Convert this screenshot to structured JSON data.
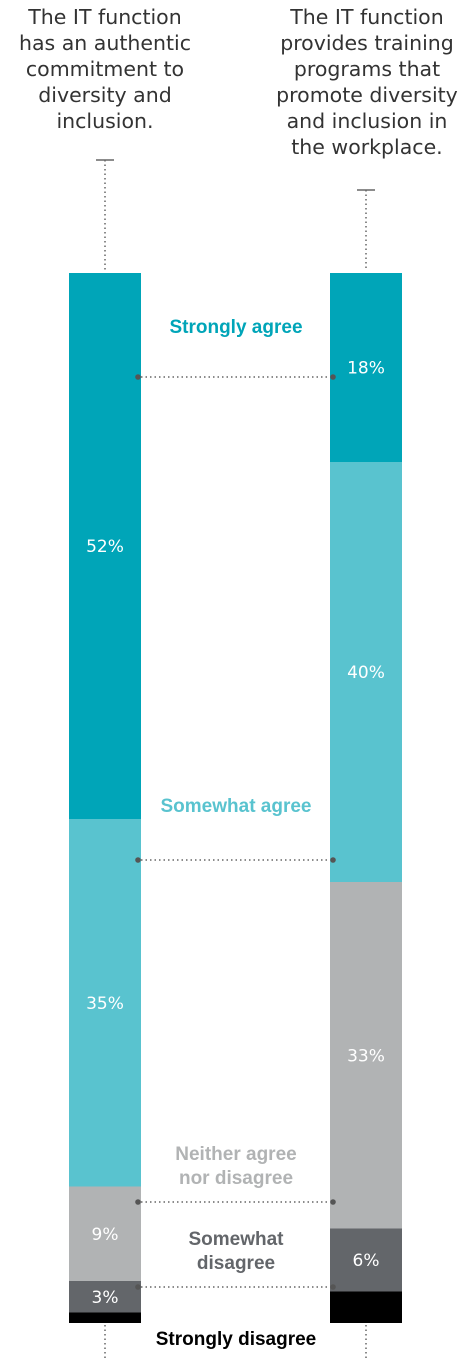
{
  "chart_data": {
    "type": "bar",
    "stacked": true,
    "orientation": "vertical",
    "categories": [
      "The IT function\nhas an authentic\ncommitment to\ndiversity and\ninclusion.",
      "The IT function\nprovides training\nprograms that\npromote diversity\nand inclusion in\nthe workplace."
    ],
    "series": [
      {
        "name": "Strongly agree",
        "values": [
          52,
          18
        ],
        "labels": [
          "52%",
          "18%"
        ],
        "color": "#00a5b8",
        "label_color": "#00a5b8"
      },
      {
        "name": "Somewhat agree",
        "values": [
          35,
          40
        ],
        "labels": [
          "35%",
          "40%"
        ],
        "color": "#59c3cf",
        "label_color": "#59c3cf"
      },
      {
        "name": "Neither agree\nnor disagree",
        "values": [
          9,
          33
        ],
        "labels": [
          "9%",
          "33%"
        ],
        "color": "#b1b3b4",
        "label_color": "#b1b3b4"
      },
      {
        "name": "Somewhat\ndisagree",
        "values": [
          3,
          6
        ],
        "labels": [
          "3%",
          "6%"
        ],
        "color": "#63666a",
        "label_color": "#63666a"
      },
      {
        "name": "Strongly disagree",
        "values": [
          1,
          3
        ],
        "labels": [
          "",
          ""
        ],
        "color": "#000000",
        "label_color": "#000000"
      }
    ],
    "legend": "inline, between bars"
  }
}
